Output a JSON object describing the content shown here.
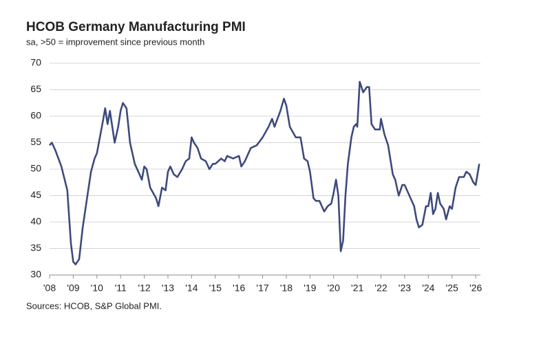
{
  "chart_data": {
    "type": "line",
    "title": "HCOB Germany Manufacturing PMI",
    "subtitle": "sa, >50 = improvement since previous month",
    "source": "Sources: HCOB, S&P Global PMI.",
    "xlim": [
      2008,
      2026.2
    ],
    "ylim": [
      30,
      70
    ],
    "yticks": [
      30,
      35,
      40,
      45,
      50,
      55,
      60,
      65,
      70
    ],
    "xticks": [
      {
        "value": 2008,
        "label": "'08"
      },
      {
        "value": 2009,
        "label": "'09"
      },
      {
        "value": 2010,
        "label": "'10"
      },
      {
        "value": 2011,
        "label": "'11"
      },
      {
        "value": 2012,
        "label": "'12"
      },
      {
        "value": 2013,
        "label": "'13"
      },
      {
        "value": 2014,
        "label": "'14"
      },
      {
        "value": 2015,
        "label": "'15"
      },
      {
        "value": 2016,
        "label": "'16"
      },
      {
        "value": 2017,
        "label": "'17"
      },
      {
        "value": 2018,
        "label": "'18"
      },
      {
        "value": 2019,
        "label": "'19"
      },
      {
        "value": 2020,
        "label": "'20"
      },
      {
        "value": 2021,
        "label": "'21"
      },
      {
        "value": 2022,
        "label": "'22"
      },
      {
        "value": 2023,
        "label": "'23"
      },
      {
        "value": 2024,
        "label": "'24"
      },
      {
        "value": 2025,
        "label": "'25"
      },
      {
        "value": 2026,
        "label": "'26"
      }
    ],
    "grid": true,
    "series": [
      {
        "color": "#3d4a7c",
        "x": [
          2008.0,
          2008.1,
          2008.25,
          2008.5,
          2008.75,
          2008.9,
          2009.0,
          2009.1,
          2009.25,
          2009.4,
          2009.6,
          2009.75,
          2009.9,
          2010.0,
          2010.25,
          2010.35,
          2010.45,
          2010.55,
          2010.75,
          2010.9,
          2011.0,
          2011.1,
          2011.25,
          2011.4,
          2011.6,
          2011.75,
          2011.9,
          2012.0,
          2012.1,
          2012.25,
          2012.5,
          2012.6,
          2012.75,
          2012.9,
          2013.0,
          2013.1,
          2013.25,
          2013.4,
          2013.6,
          2013.75,
          2013.9,
          2014.0,
          2014.1,
          2014.25,
          2014.4,
          2014.6,
          2014.75,
          2014.9,
          2015.0,
          2015.25,
          2015.4,
          2015.5,
          2015.75,
          2016.0,
          2016.1,
          2016.25,
          2016.5,
          2016.75,
          2017.0,
          2017.25,
          2017.4,
          2017.5,
          2017.75,
          2017.9,
          2018.0,
          2018.15,
          2018.4,
          2018.6,
          2018.75,
          2018.9,
          2019.0,
          2019.15,
          2019.25,
          2019.4,
          2019.6,
          2019.75,
          2019.9,
          2020.0,
          2020.1,
          2020.2,
          2020.3,
          2020.4,
          2020.5,
          2020.6,
          2020.75,
          2020.85,
          2020.95,
          2021.0,
          2021.1,
          2021.25,
          2021.4,
          2021.5,
          2021.6,
          2021.75,
          2021.95,
          2022.0,
          2022.15,
          2022.3,
          2022.5,
          2022.6,
          2022.75,
          2022.9,
          2023.0,
          2023.25,
          2023.4,
          2023.5,
          2023.6,
          2023.75,
          2023.9,
          2024.0,
          2024.1,
          2024.2,
          2024.3,
          2024.4,
          2024.5,
          2024.65,
          2024.75,
          2024.9,
          2025.0,
          2025.15,
          2025.3,
          2025.5,
          2025.6,
          2025.75,
          2025.9,
          2026.0,
          2026.15
        ],
        "values": [
          54.5,
          55,
          53.5,
          50.5,
          46,
          36,
          32.5,
          32,
          33,
          39,
          45,
          49.5,
          52,
          53,
          59,
          61.5,
          58.5,
          61,
          55,
          58,
          61,
          62.5,
          61.5,
          55,
          51,
          49.5,
          48,
          50.5,
          50,
          46.5,
          44.5,
          43,
          46.5,
          46,
          49.5,
          50.5,
          49,
          48.5,
          50,
          51.5,
          52,
          56,
          55,
          54,
          52,
          51.5,
          50,
          51,
          51,
          52,
          51.5,
          52.5,
          52,
          52.5,
          50.5,
          51.5,
          54,
          54.5,
          56,
          58,
          59.5,
          58,
          61,
          63.3,
          62,
          58,
          56,
          56,
          52,
          51.5,
          49.5,
          44.5,
          44,
          44,
          42,
          43,
          43.5,
          45.5,
          48,
          45,
          34.5,
          36.5,
          45,
          51,
          56,
          58,
          58.5,
          58,
          66.5,
          64.5,
          65.5,
          65.5,
          58.5,
          57.5,
          57.5,
          59.5,
          56.5,
          54.5,
          49,
          48,
          45,
          47,
          47,
          44.5,
          43,
          40.5,
          39,
          39.5,
          43,
          43,
          45.5,
          41.5,
          42.5,
          45.5,
          43.5,
          42.5,
          40.5,
          43,
          42.5,
          46.5,
          48.5,
          48.5,
          49.5,
          49,
          47.5,
          47,
          51
        ]
      }
    ]
  }
}
